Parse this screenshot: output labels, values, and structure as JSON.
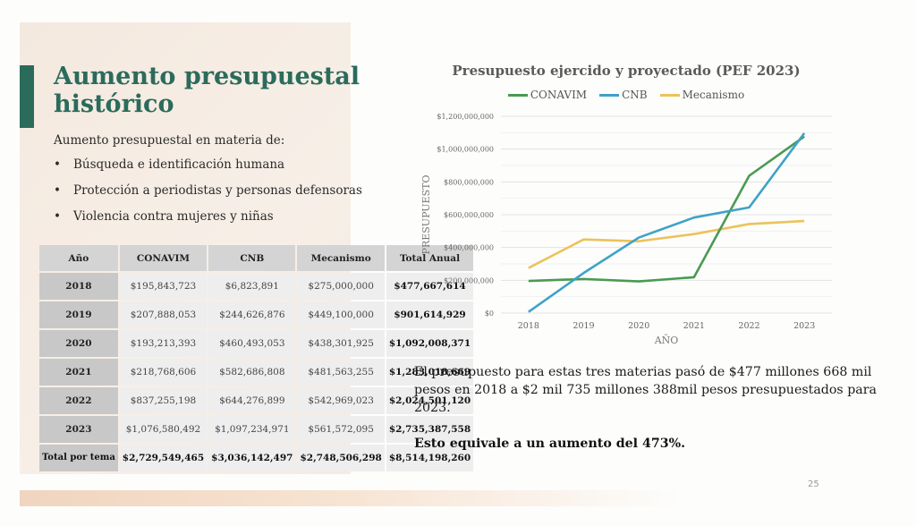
{
  "slide": {
    "title": "Aumento presupuestal histórico",
    "subtitle": "Aumento presupuestal en materia de:",
    "bullets": [
      "Búsqueda e identificación humana",
      "Protección a periodistas y personas defensoras",
      "Violencia contra mujeres y niñas"
    ],
    "page_number": "25",
    "accent_color": "#2b6b5c"
  },
  "table": {
    "headers": [
      "Año",
      "CONAVIM",
      "CNB",
      "Mecanismo",
      "Total Anual"
    ],
    "rows": [
      [
        "2018",
        "$195,843,723",
        "$6,823,891",
        "$275,000,000",
        "$477,667,614"
      ],
      [
        "2019",
        "$207,888,053",
        "$244,626,876",
        "$449,100,000",
        "$901,614,929"
      ],
      [
        "2020",
        "$193,213,393",
        "$460,493,053",
        "$438,301,925",
        "$1,092,008,371"
      ],
      [
        "2021",
        "$218,768,606",
        "$582,686,808",
        "$481,563,255",
        "$1,283,018,669"
      ],
      [
        "2022",
        "$837,255,198",
        "$644,276,899",
        "$542,969,023",
        "$2,024,501,120"
      ],
      [
        "2023",
        "$1,076,580,492",
        "$1,097,234,971",
        "$561,572,095",
        "$2,735,387,558"
      ]
    ],
    "totals": [
      "Total por tema",
      "$2,729,549,465",
      "$3,036,142,497",
      "$2,748,506,298",
      "$8,514,198,260"
    ]
  },
  "text": {
    "paragraph": "El presupuesto para estas tres materias pasó de $477 millones 668 mil pesos en 2018 a $2 mil 735 millones 388mil pesos presupuestados para 2023.",
    "conclusion": "Esto equivale a un aumento del 473%."
  },
  "chart_data": {
    "type": "line",
    "title": "Presupuesto ejercido y proyectado (PEF 2023)",
    "xlabel": "AÑO",
    "ylabel": "PRESUPUESTO",
    "x": [
      "2018",
      "2019",
      "2020",
      "2021",
      "2022",
      "2023"
    ],
    "ylim": [
      0,
      1200000000
    ],
    "yticks": [
      "$0",
      "$200,000,000",
      "$400,000,000",
      "$600,000,000",
      "$800,000,000",
      "$1,000,000,000",
      "$1,200,000,000"
    ],
    "legend_position": "top",
    "grid": true,
    "series": [
      {
        "name": "CONAVIM",
        "color": "#4a9a52",
        "values": [
          195843723,
          207888053,
          193213393,
          218768606,
          837255198,
          1076580492
        ]
      },
      {
        "name": "CNB",
        "color": "#3fa2c8",
        "values": [
          6823891,
          244626876,
          460493053,
          582686808,
          644276899,
          1097234971
        ]
      },
      {
        "name": "Mecanismo",
        "color": "#ecc25a",
        "values": [
          275000000,
          449100000,
          438301925,
          481563255,
          542969023,
          561572095
        ]
      }
    ]
  }
}
